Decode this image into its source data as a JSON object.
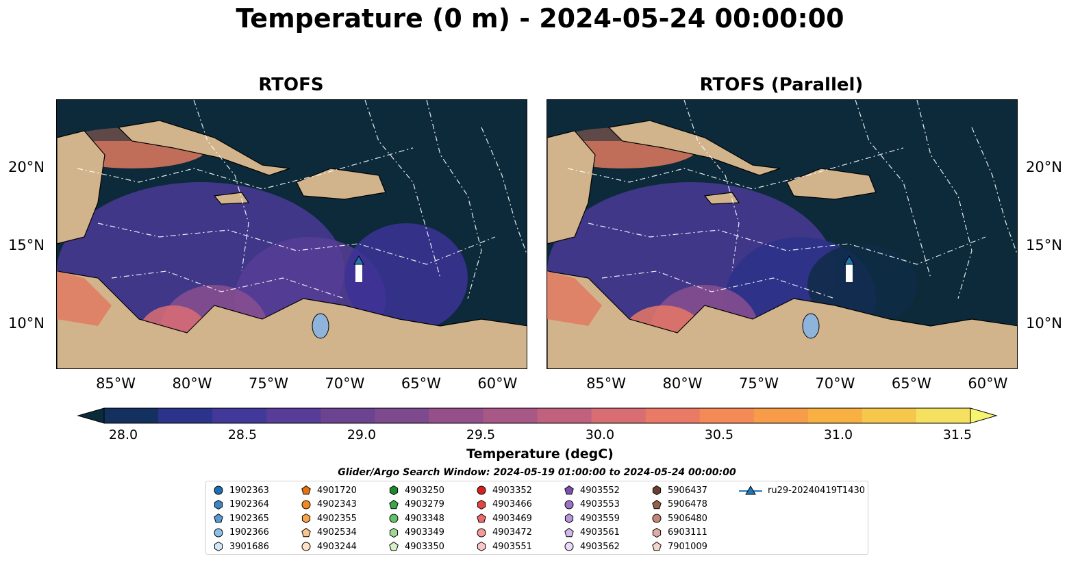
{
  "title": "Temperature (0 m) - 2024-05-24 00:00:00",
  "panels": [
    {
      "title": "RTOFS"
    },
    {
      "title": "RTOFS (Parallel)"
    }
  ],
  "axes": {
    "x_ticks": [
      "85°W",
      "80°W",
      "75°W",
      "70°W",
      "65°W",
      "60°W"
    ],
    "y_ticks": [
      "20°N",
      "15°N",
      "10°N"
    ]
  },
  "colorbar": {
    "label": "Temperature (degC)",
    "range": [
      28.0,
      31.5
    ],
    "ticks": [
      "28.0",
      "28.5",
      "29.0",
      "29.5",
      "30.0",
      "30.5",
      "31.0",
      "31.5"
    ],
    "colors": [
      "#0b2a3a",
      "#14305f",
      "#2c338a",
      "#41389a",
      "#573d97",
      "#6b4391",
      "#7d4a8e",
      "#95508a",
      "#a85886",
      "#c06180",
      "#d96d74",
      "#ea7a66",
      "#f48a55",
      "#f79c48",
      "#f8b043",
      "#f5c84c",
      "#f5e060",
      "#f7f46f"
    ]
  },
  "search_window": "Glider/Argo Search Window: 2024-05-19 01:00:00 to 2024-05-24 00:00:00",
  "legend": [
    {
      "label": "1902363",
      "marker": "circle",
      "color": "#1f6fb4"
    },
    {
      "label": "1902364",
      "marker": "hexagon",
      "color": "#3c84c4"
    },
    {
      "label": "1902365",
      "marker": "pentagon",
      "color": "#5a9ad4"
    },
    {
      "label": "1902366",
      "marker": "circle",
      "color": "#8fbfe6"
    },
    {
      "label": "3901686",
      "marker": "hexagon",
      "color": "#d3e6f7"
    },
    {
      "label": "4901720",
      "marker": "pentagon",
      "color": "#e8720c"
    },
    {
      "label": "4902343",
      "marker": "circle",
      "color": "#f28a1e"
    },
    {
      "label": "4902355",
      "marker": "hexagon",
      "color": "#f7a44a"
    },
    {
      "label": "4902534",
      "marker": "pentagon",
      "color": "#f9c58c"
    },
    {
      "label": "4903244",
      "marker": "circle",
      "color": "#fde2c4"
    },
    {
      "label": "4903250",
      "marker": "hexagon",
      "color": "#1e8a2e"
    },
    {
      "label": "4903279",
      "marker": "pentagon",
      "color": "#3ba848"
    },
    {
      "label": "4903348",
      "marker": "circle",
      "color": "#66c066"
    },
    {
      "label": "4903349",
      "marker": "hexagon",
      "color": "#9ed98f"
    },
    {
      "label": "4903350",
      "marker": "pentagon",
      "color": "#d6f2c8"
    },
    {
      "label": "4903352",
      "marker": "circle",
      "color": "#d62020"
    },
    {
      "label": "4903466",
      "marker": "hexagon",
      "color": "#e24444"
    },
    {
      "label": "4903469",
      "marker": "pentagon",
      "color": "#ec6a6a"
    },
    {
      "label": "4903472",
      "marker": "circle",
      "color": "#f59a9a"
    },
    {
      "label": "4903551",
      "marker": "hexagon",
      "color": "#f8c8c8"
    },
    {
      "label": "4903552",
      "marker": "pentagon",
      "color": "#7a4fb0"
    },
    {
      "label": "4903553",
      "marker": "circle",
      "color": "#9a72c8"
    },
    {
      "label": "4903559",
      "marker": "hexagon",
      "color": "#b896dc"
    },
    {
      "label": "4903561",
      "marker": "pentagon",
      "color": "#d2b8ec"
    },
    {
      "label": "4903562",
      "marker": "circle",
      "color": "#ead9f7"
    },
    {
      "label": "5906437",
      "marker": "hexagon",
      "color": "#6b3f2e"
    },
    {
      "label": "5906478",
      "marker": "pentagon",
      "color": "#93604a"
    },
    {
      "label": "5906480",
      "marker": "circle",
      "color": "#c28877"
    },
    {
      "label": "6903111",
      "marker": "hexagon",
      "color": "#dcaea0"
    },
    {
      "label": "7901009",
      "marker": "pentagon",
      "color": "#f4d6cc"
    },
    {
      "label": "ru29-20240419T1430",
      "marker": "triangle-line",
      "color": "#1f77b4"
    }
  ]
}
